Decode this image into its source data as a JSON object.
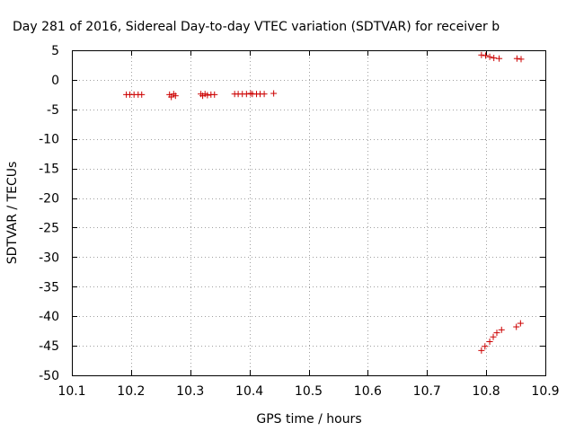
{
  "chart_data": {
    "type": "scatter",
    "title": "Day 281 of 2016, Sidereal Day-to-day VTEC variation (SDTVAR) for receiver b",
    "xlabel": "GPS time / hours",
    "ylabel": "SDTVAR / TECUs",
    "xlim": [
      10.1,
      10.9
    ],
    "ylim": [
      -50,
      5
    ],
    "xticks": [
      "10.1",
      "10.2",
      "10.3",
      "10.4",
      "10.5",
      "10.6",
      "10.7",
      "10.8",
      "10.9"
    ],
    "yticks": [
      "5",
      "0",
      "-5",
      "-10",
      "-15",
      "-20",
      "-25",
      "-30",
      "-35",
      "-40",
      "-45",
      "-50"
    ],
    "grid": true,
    "marker": "plus",
    "marker_color": "#cc0000",
    "series": [
      {
        "name": "SDTVAR",
        "x": [
          10.192,
          10.198,
          10.205,
          10.212,
          10.218,
          10.265,
          10.268,
          10.272,
          10.275,
          10.318,
          10.321,
          10.325,
          10.329,
          10.335,
          10.341,
          10.375,
          10.381,
          10.388,
          10.395,
          10.402,
          10.405,
          10.412,
          10.418,
          10.425,
          10.441,
          10.792,
          10.799,
          10.806,
          10.813,
          10.822,
          10.852,
          10.859,
          10.792,
          10.798,
          10.806,
          10.812,
          10.818,
          10.826,
          10.851,
          10.858
        ],
        "y": [
          -2.5,
          -2.5,
          -2.5,
          -2.5,
          -2.5,
          -2.5,
          -2.9,
          -2.4,
          -2.7,
          -2.4,
          -2.7,
          -2.4,
          -2.6,
          -2.5,
          -2.5,
          -2.4,
          -2.4,
          -2.4,
          -2.4,
          -2.3,
          -2.4,
          -2.4,
          -2.4,
          -2.4,
          -2.3,
          4.2,
          4.1,
          3.9,
          3.7,
          3.6,
          3.6,
          3.5,
          -45.8,
          -45.1,
          -44.3,
          -43.5,
          -42.8,
          -42.3,
          -41.8,
          -41.2
        ]
      }
    ]
  }
}
